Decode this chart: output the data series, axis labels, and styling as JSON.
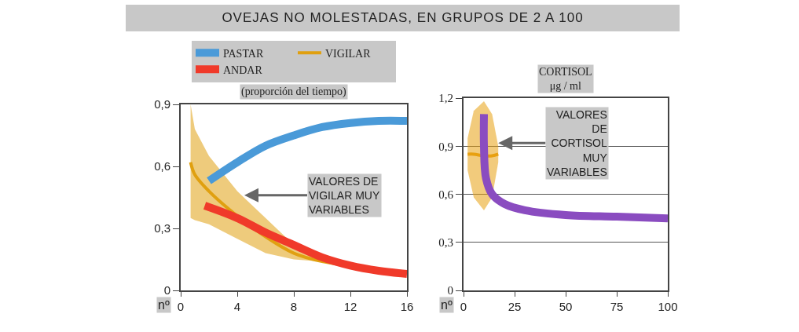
{
  "chart_data": [
    {
      "type": "line",
      "title": "OVEJAS NO MOLESTADAS, EN GRUPOS DE 2 A 100",
      "xlabel": "nº",
      "ylabel": "(proporción del tiempo)",
      "xlim": [
        0,
        16
      ],
      "ylim": [
        0,
        0.9
      ],
      "xticks": [
        0,
        4,
        8,
        12,
        16
      ],
      "yticks": [
        0,
        {
          "value": 0.3,
          "label": "0,3"
        },
        {
          "value": 0.6,
          "label": "0,6"
        },
        {
          "value": 0.9,
          "label": "0,9"
        }
      ],
      "grid": false,
      "legend": "top",
      "series": [
        {
          "name": "PASTAR",
          "color": "#4a9ad8",
          "x": [
            2,
            4,
            6,
            8,
            10,
            12,
            14,
            16
          ],
          "values": [
            0.53,
            0.62,
            0.7,
            0.75,
            0.79,
            0.81,
            0.82,
            0.82
          ]
        },
        {
          "name": "VIGILAR",
          "color": "#e0a010",
          "x": [
            0.7,
            1,
            2,
            4,
            6,
            8,
            10,
            12
          ],
          "values": [
            0.62,
            0.56,
            0.48,
            0.36,
            0.26,
            0.18,
            0.14,
            0.12
          ],
          "lower": [
            0.35,
            0.34,
            0.32,
            0.25,
            0.18,
            0.15,
            0.14,
            0.12
          ],
          "upper": [
            0.9,
            0.78,
            0.65,
            0.48,
            0.35,
            0.22,
            0.15,
            0.12
          ]
        },
        {
          "name": "ANDAR",
          "color": "#f03a2a",
          "x": [
            1.7,
            4,
            6,
            8,
            10,
            12,
            14,
            16
          ],
          "values": [
            0.41,
            0.35,
            0.28,
            0.22,
            0.16,
            0.12,
            0.095,
            0.08
          ]
        }
      ],
      "annotations": [
        {
          "text": "VALORES DE VIGILAR MUY VARIABLES",
          "x": 4.5,
          "y": 0.46
        }
      ]
    },
    {
      "type": "line",
      "xlabel": "nº",
      "ylabel": "CORTISOL μg / ml",
      "xlim": [
        0,
        100
      ],
      "ylim": [
        0,
        1.2
      ],
      "xticks": [
        0,
        25,
        50,
        75,
        100
      ],
      "yticks": [
        0,
        {
          "value": 0.3,
          "label": "0,3"
        },
        {
          "value": 0.6,
          "label": "0,6"
        },
        {
          "value": 0.9,
          "label": "0,9"
        },
        {
          "value": 1.2,
          "label": "1,2"
        }
      ],
      "grid": "y",
      "legend": false,
      "series": [
        {
          "color": "#e8a010",
          "x": [
            2,
            5,
            10,
            14,
            17
          ],
          "values": [
            0.85,
            0.85,
            0.84,
            0.84,
            0.85
          ],
          "lower": [
            0.75,
            0.58,
            0.5,
            0.58,
            0.8
          ],
          "upper": [
            0.95,
            1.12,
            1.18,
            1.1,
            0.9
          ]
        },
        {
          "color": "#8a4cc0",
          "x": [
            10,
            10,
            11,
            14,
            20,
            30,
            50,
            75,
            100
          ],
          "values": [
            1.1,
            0.9,
            0.7,
            0.6,
            0.54,
            0.5,
            0.47,
            0.46,
            0.45
          ]
        }
      ],
      "annotations": [
        {
          "text": "VALORES DE CORTISOL MUY VARIABLES",
          "x": 17,
          "y": 0.92
        }
      ]
    }
  ]
}
